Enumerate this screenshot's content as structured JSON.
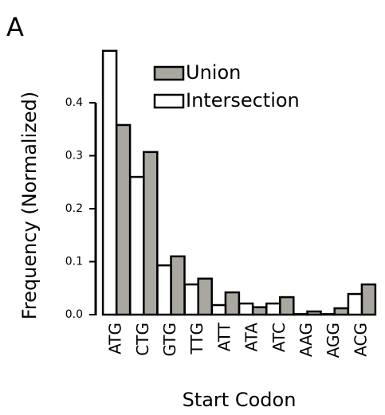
{
  "panel_label": "A",
  "chart_data": {
    "type": "bar",
    "xlabel": "Start Codon",
    "ylabel": "Frequency (Normalized)",
    "categories": [
      "ATG",
      "CTG",
      "GTG",
      "TTG",
      "ATT",
      "ATA",
      "ATC",
      "AAG",
      "AGG",
      "ACG"
    ],
    "series": [
      {
        "name": "Union",
        "color": "#aaa7a1",
        "values": [
          0.358,
          0.307,
          0.11,
          0.068,
          0.042,
          0.014,
          0.033,
          0.006,
          0.012,
          0.057
        ]
      },
      {
        "name": "Intersection",
        "color": "#ffffff",
        "values": [
          0.498,
          0.26,
          0.093,
          0.057,
          0.018,
          0.021,
          0.021,
          0.001,
          0.001,
          0.039
        ]
      }
    ],
    "ylim": [
      0,
      0.5
    ],
    "yticks": [
      {
        "value": 0,
        "label": "0.0"
      },
      0.1,
      0.2,
      0.3,
      0.4
    ],
    "legend": "upper right"
  }
}
